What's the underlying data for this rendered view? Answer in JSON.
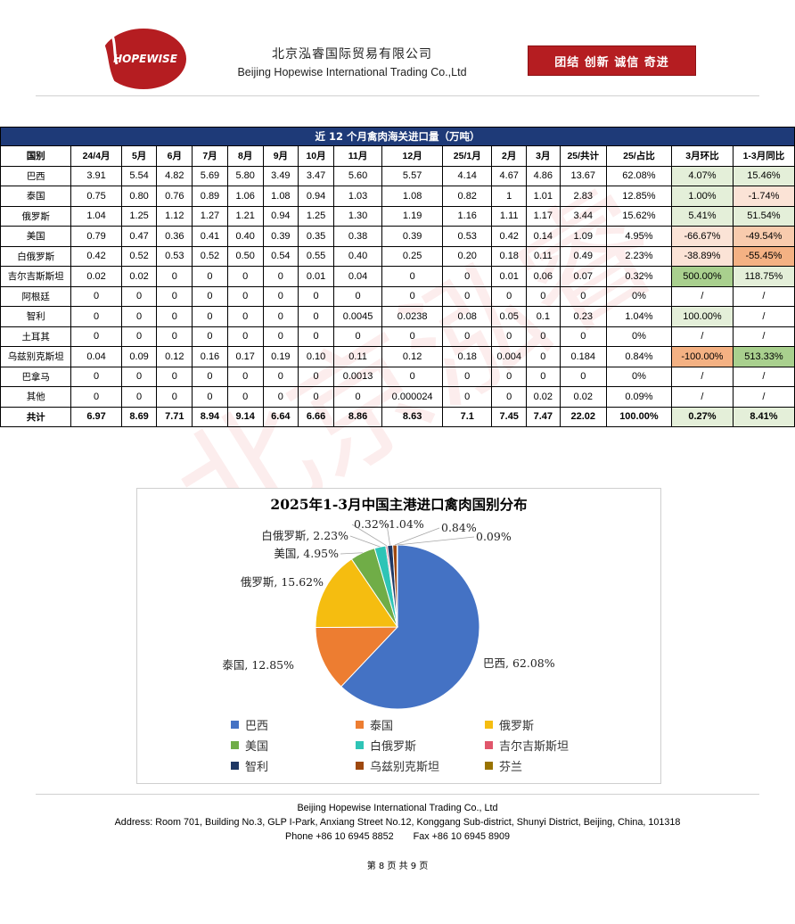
{
  "header": {
    "company_cn": "北京泓睿国际贸易有限公司",
    "company_en": "Beijing Hopewise International Trading Co.,Ltd",
    "logo_text": "HOPEWISE",
    "motto": "团结   创新   诚信   奇进"
  },
  "table": {
    "title": "近 12 个月禽肉海关进口量（万吨）",
    "columns": [
      "国别",
      "24/4月",
      "5月",
      "6月",
      "7月",
      "8月",
      "9月",
      "10月",
      "11月",
      "12月",
      "25/1月",
      "2月",
      "3月",
      "25/共计",
      "25/占比",
      "3月环比",
      "1-3月同比"
    ],
    "rows": [
      [
        "巴西",
        "3.91",
        "5.54",
        "4.82",
        "5.69",
        "5.80",
        "3.49",
        "3.47",
        "5.60",
        "5.57",
        "4.14",
        "4.67",
        "4.86",
        "13.67",
        "62.08%",
        "4.07%",
        "15.46%"
      ],
      [
        "泰国",
        "0.75",
        "0.80",
        "0.76",
        "0.89",
        "1.06",
        "1.08",
        "0.94",
        "1.03",
        "1.08",
        "0.82",
        "1",
        "1.01",
        "2.83",
        "12.85%",
        "1.00%",
        "-1.74%"
      ],
      [
        "俄罗斯",
        "1.04",
        "1.25",
        "1.12",
        "1.27",
        "1.21",
        "0.94",
        "1.25",
        "1.30",
        "1.19",
        "1.16",
        "1.11",
        "1.17",
        "3.44",
        "15.62%",
        "5.41%",
        "51.54%"
      ],
      [
        "美国",
        "0.79",
        "0.47",
        "0.36",
        "0.41",
        "0.40",
        "0.39",
        "0.35",
        "0.38",
        "0.39",
        "0.53",
        "0.42",
        "0.14",
        "1.09",
        "4.95%",
        "-66.67%",
        "-49.54%"
      ],
      [
        "白俄罗斯",
        "0.42",
        "0.52",
        "0.53",
        "0.52",
        "0.50",
        "0.54",
        "0.55",
        "0.40",
        "0.25",
        "0.20",
        "0.18",
        "0.11",
        "0.49",
        "2.23%",
        "-38.89%",
        "-55.45%"
      ],
      [
        "吉尔吉斯斯坦",
        "0.02",
        "0.02",
        "0",
        "0",
        "0",
        "0",
        "0.01",
        "0.04",
        "0",
        "0",
        "0.01",
        "0.06",
        "0.07",
        "0.32%",
        "500.00%",
        "118.75%"
      ],
      [
        "阿根廷",
        "0",
        "0",
        "0",
        "0",
        "0",
        "0",
        "0",
        "0",
        "0",
        "0",
        "0",
        "0",
        "0",
        "0%",
        "/",
        "/"
      ],
      [
        "智利",
        "0",
        "0",
        "0",
        "0",
        "0",
        "0",
        "0",
        "0.0045",
        "0.0238",
        "0.08",
        "0.05",
        "0.1",
        "0.23",
        "1.04%",
        "100.00%",
        "/"
      ],
      [
        "土耳其",
        "0",
        "0",
        "0",
        "0",
        "0",
        "0",
        "0",
        "0",
        "0",
        "0",
        "0",
        "0",
        "0",
        "0%",
        "/",
        "/"
      ],
      [
        "乌兹别克斯坦",
        "0.04",
        "0.09",
        "0.12",
        "0.16",
        "0.17",
        "0.19",
        "0.10",
        "0.11",
        "0.12",
        "0.18",
        "0.004",
        "0",
        "0.184",
        "0.84%",
        "-100.00%",
        "513.33%"
      ],
      [
        "巴拿马",
        "0",
        "0",
        "0",
        "0",
        "0",
        "0",
        "0",
        "0.0013",
        "0",
        "0",
        "0",
        "0",
        "0",
        "0%",
        "/",
        "/"
      ],
      [
        "其他",
        "0",
        "0",
        "0",
        "0",
        "0",
        "0",
        "0",
        "0",
        "0.000024",
        "0",
        "0",
        "0.02",
        "0.02",
        "0.09%",
        "/",
        "/"
      ]
    ],
    "total": [
      "共计",
      "6.97",
      "8.69",
      "7.71",
      "8.94",
      "9.14",
      "6.64",
      "6.66",
      "8.86",
      "8.63",
      "7.1",
      "7.45",
      "7.47",
      "22.02",
      "100.00%",
      "0.27%",
      "8.41%"
    ],
    "cell_colors": {
      "mom": [
        "#e4efd9",
        "#e4efd9",
        "#e4efd9",
        "#fbe3d6",
        "#fbe3d6",
        "#a9d08e",
        "#ffffff",
        "#e4efd9",
        "#ffffff",
        "#f4b183",
        "#ffffff",
        "#ffffff"
      ],
      "yoy": [
        "#e4efd9",
        "#fbe3d6",
        "#e4efd9",
        "#f8cbad",
        "#f4b183",
        "#e4efd9",
        "#ffffff",
        "#ffffff",
        "#ffffff",
        "#a9d08e",
        "#ffffff",
        "#ffffff"
      ],
      "total_mom": "#e4efd9",
      "total_yoy": "#e4efd9"
    }
  },
  "chart_data": {
    "type": "pie",
    "title": "2025年1-3月中国主港进口禽肉国别分布",
    "slices": [
      {
        "name": "巴西",
        "value": 62.08,
        "label": "巴西, 62.08%",
        "color": "#4472c4"
      },
      {
        "name": "泰国",
        "value": 12.85,
        "label": "泰国, 12.85%",
        "color": "#ed7d31"
      },
      {
        "name": "俄罗斯",
        "value": 15.62,
        "label": "俄罗斯, 15.62%",
        "color": "#f5bd10"
      },
      {
        "name": "美国",
        "value": 4.95,
        "label": "美国, 4.95%",
        "color": "#70ad47"
      },
      {
        "name": "白俄罗斯",
        "value": 2.23,
        "label": "白俄罗斯, 2.23%",
        "color": "#2ec4b6"
      },
      {
        "name": "吉尔吉斯斯坦",
        "value": 0.32,
        "label": "0.32%",
        "color": "#e0566b"
      },
      {
        "name": "智利",
        "value": 1.04,
        "label": "1.04%",
        "color": "#1f3864"
      },
      {
        "name": "乌兹别克斯坦",
        "value": 0.84,
        "label": "0.84%",
        "color": "#9e480e"
      },
      {
        "name": "芬兰",
        "value": 0.09,
        "label": "0.09%",
        "color": "#997300"
      }
    ],
    "legend_placement": "bottom"
  },
  "footer": {
    "line1": "Beijing Hopewise International Trading Co., Ltd",
    "line2": "Address: Room 701, Building No.3, GLP I-Park, Anxiang Street No.12, Konggang Sub-district, Shunyi District, Beijing, China, 101318",
    "phone": "Phone +86 10 6945 8852",
    "fax": "Fax +86 10 6945 8909",
    "page": "第 8 页 共 9 页"
  },
  "watermark": "北京泓睿"
}
